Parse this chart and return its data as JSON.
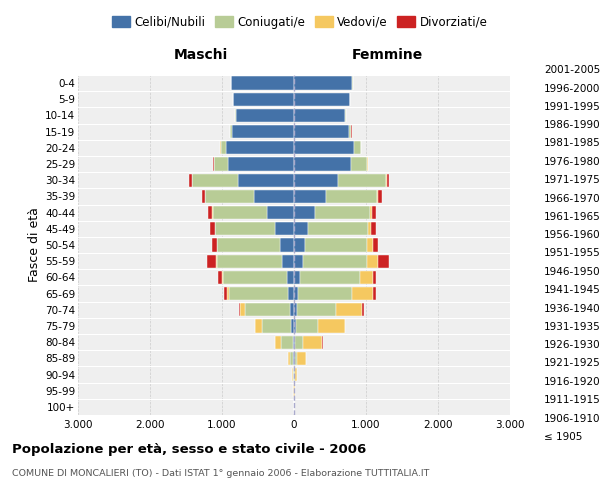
{
  "age_groups": [
    "100+",
    "95-99",
    "90-94",
    "85-89",
    "80-84",
    "75-79",
    "70-74",
    "65-69",
    "60-64",
    "55-59",
    "50-54",
    "45-49",
    "40-44",
    "35-39",
    "30-34",
    "25-29",
    "20-24",
    "15-19",
    "10-14",
    "5-9",
    "0-4"
  ],
  "birth_years": [
    "≤ 1905",
    "1906-1910",
    "1911-1915",
    "1916-1920",
    "1921-1925",
    "1926-1930",
    "1931-1935",
    "1936-1940",
    "1941-1945",
    "1946-1950",
    "1951-1955",
    "1956-1960",
    "1961-1965",
    "1966-1970",
    "1971-1975",
    "1976-1980",
    "1981-1985",
    "1986-1990",
    "1991-1995",
    "1996-2000",
    "2001-2005"
  ],
  "maschi": {
    "celibi": [
      2,
      3,
      5,
      8,
      20,
      40,
      55,
      80,
      100,
      170,
      200,
      270,
      380,
      560,
      780,
      920,
      950,
      860,
      810,
      850,
      870
    ],
    "coniugati": [
      1,
      3,
      12,
      50,
      160,
      400,
      620,
      820,
      880,
      900,
      870,
      830,
      750,
      680,
      640,
      190,
      70,
      25,
      8,
      4,
      3
    ],
    "vedovi": [
      0,
      2,
      8,
      25,
      80,
      100,
      70,
      35,
      18,
      8,
      6,
      4,
      3,
      2,
      2,
      2,
      2,
      1,
      0,
      0,
      0
    ],
    "divorziati": [
      0,
      0,
      0,
      0,
      5,
      8,
      18,
      40,
      55,
      130,
      65,
      65,
      55,
      40,
      35,
      12,
      8,
      4,
      2,
      0,
      0
    ]
  },
  "femmine": {
    "nubili": [
      2,
      3,
      5,
      7,
      15,
      25,
      40,
      60,
      80,
      130,
      150,
      195,
      295,
      450,
      610,
      790,
      840,
      760,
      710,
      780,
      810
    ],
    "coniugate": [
      1,
      2,
      8,
      35,
      110,
      310,
      540,
      740,
      830,
      880,
      870,
      830,
      760,
      700,
      670,
      230,
      85,
      35,
      12,
      4,
      3
    ],
    "vedove": [
      1,
      7,
      35,
      120,
      270,
      370,
      370,
      295,
      190,
      155,
      75,
      45,
      25,
      18,
      8,
      6,
      4,
      2,
      1,
      0,
      0
    ],
    "divorziate": [
      0,
      0,
      0,
      0,
      4,
      8,
      18,
      38,
      45,
      150,
      75,
      75,
      65,
      55,
      25,
      8,
      6,
      2,
      1,
      0,
      0
    ]
  },
  "colors": {
    "celibi": "#4472a8",
    "coniugati": "#b8cc96",
    "vedovi": "#f5c860",
    "divorziati": "#cc2222"
  },
  "title": "Popolazione per età, sesso e stato civile - 2006",
  "subtitle": "COMUNE DI MONCALIERI (TO) - Dati ISTAT 1° gennaio 2006 - Elaborazione TUTTITALIA.IT",
  "label_maschi": "Maschi",
  "label_femmine": "Femmine",
  "ylabel_left": "Fasce di età",
  "xlim": 3000,
  "bg_color": "#ffffff",
  "plot_bg": "#efefef",
  "grid_color": "#cccccc",
  "legend_labels": [
    "Celibi/Nubili",
    "Coniugati/e",
    "Vedovi/e",
    "Divorziati/e"
  ]
}
